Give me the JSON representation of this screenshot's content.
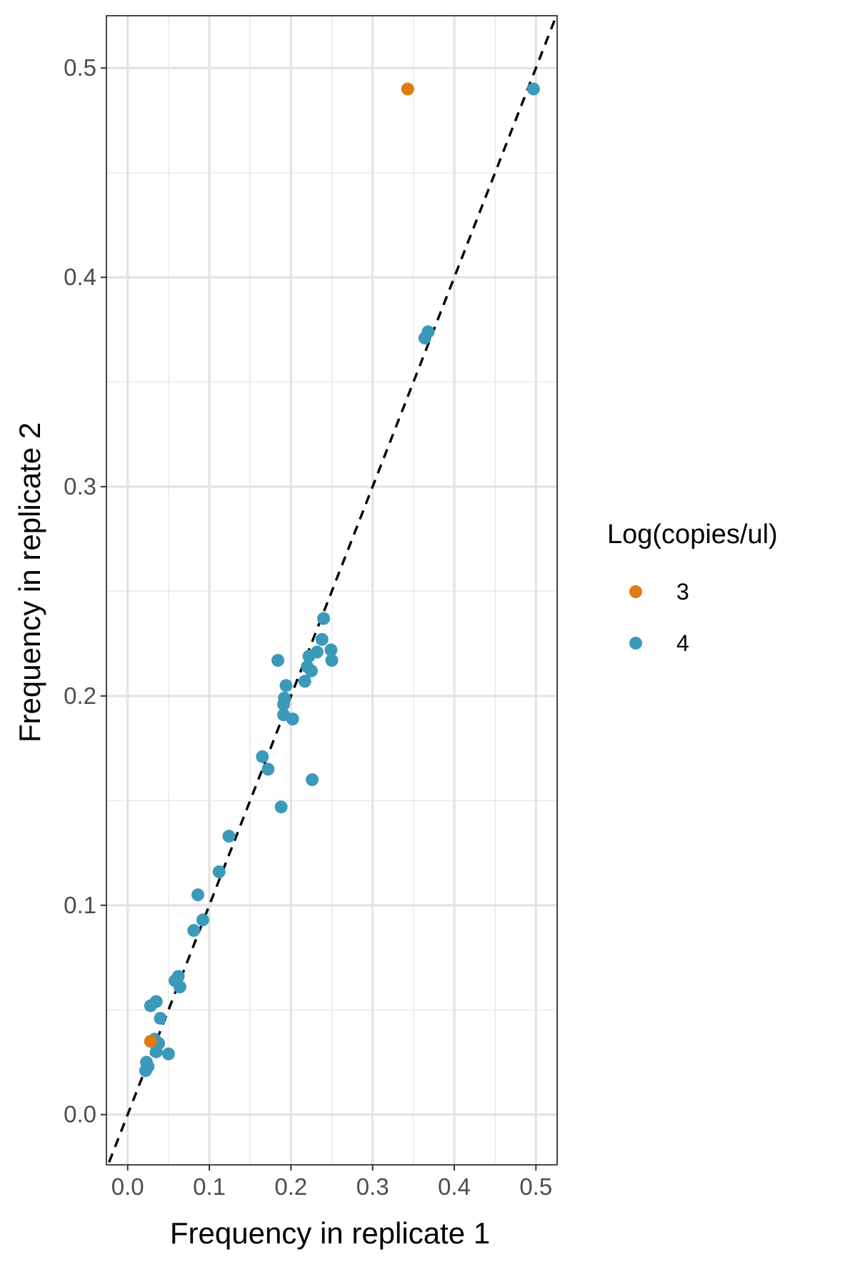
{
  "chart_data": {
    "type": "scatter",
    "xlabel": "Frequency in replicate 1",
    "ylabel": "Frequency in replicate 2",
    "xlim": [
      -0.026,
      0.526
    ],
    "ylim": [
      -0.024,
      0.525
    ],
    "x_ticks": [
      0.0,
      0.1,
      0.2,
      0.3,
      0.4,
      0.5
    ],
    "x_tick_labels": [
      "0.0",
      "0.1",
      "0.2",
      "0.3",
      "0.4",
      "0.5"
    ],
    "y_ticks": [
      0.0,
      0.1,
      0.2,
      0.3,
      0.4,
      0.5
    ],
    "y_tick_labels": [
      "0.0",
      "0.1",
      "0.2",
      "0.3",
      "0.4",
      "0.5"
    ],
    "grid": true,
    "reference_line": {
      "type": "identity",
      "style": "dashed",
      "color": "#000000"
    },
    "legend": {
      "title": "Log(copies/ul)",
      "position": "right"
    },
    "series": [
      {
        "name": "3",
        "color": "#E07B10",
        "points": [
          {
            "x": 0.343,
            "y": 0.49
          },
          {
            "x": 0.028,
            "y": 0.035
          }
        ]
      },
      {
        "name": "4",
        "color": "#3B9AB9",
        "points": [
          {
            "x": 0.497,
            "y": 0.49
          },
          {
            "x": 0.364,
            "y": 0.371
          },
          {
            "x": 0.368,
            "y": 0.374
          },
          {
            "x": 0.24,
            "y": 0.237
          },
          {
            "x": 0.238,
            "y": 0.227
          },
          {
            "x": 0.184,
            "y": 0.217
          },
          {
            "x": 0.222,
            "y": 0.219
          },
          {
            "x": 0.232,
            "y": 0.221
          },
          {
            "x": 0.249,
            "y": 0.222
          },
          {
            "x": 0.25,
            "y": 0.217
          },
          {
            "x": 0.22,
            "y": 0.214
          },
          {
            "x": 0.225,
            "y": 0.212
          },
          {
            "x": 0.217,
            "y": 0.207
          },
          {
            "x": 0.194,
            "y": 0.205
          },
          {
            "x": 0.192,
            "y": 0.199
          },
          {
            "x": 0.191,
            "y": 0.196
          },
          {
            "x": 0.191,
            "y": 0.191
          },
          {
            "x": 0.202,
            "y": 0.189
          },
          {
            "x": 0.165,
            "y": 0.171
          },
          {
            "x": 0.172,
            "y": 0.165
          },
          {
            "x": 0.226,
            "y": 0.16
          },
          {
            "x": 0.188,
            "y": 0.147
          },
          {
            "x": 0.124,
            "y": 0.133
          },
          {
            "x": 0.112,
            "y": 0.116
          },
          {
            "x": 0.086,
            "y": 0.105
          },
          {
            "x": 0.092,
            "y": 0.093
          },
          {
            "x": 0.081,
            "y": 0.088
          },
          {
            "x": 0.058,
            "y": 0.064
          },
          {
            "x": 0.062,
            "y": 0.066
          },
          {
            "x": 0.064,
            "y": 0.061
          },
          {
            "x": 0.028,
            "y": 0.052
          },
          {
            "x": 0.035,
            "y": 0.054
          },
          {
            "x": 0.04,
            "y": 0.046
          },
          {
            "x": 0.033,
            "y": 0.036
          },
          {
            "x": 0.038,
            "y": 0.034
          },
          {
            "x": 0.035,
            "y": 0.03
          },
          {
            "x": 0.05,
            "y": 0.029
          },
          {
            "x": 0.023,
            "y": 0.025
          },
          {
            "x": 0.025,
            "y": 0.023
          },
          {
            "x": 0.022,
            "y": 0.021
          }
        ]
      }
    ]
  }
}
